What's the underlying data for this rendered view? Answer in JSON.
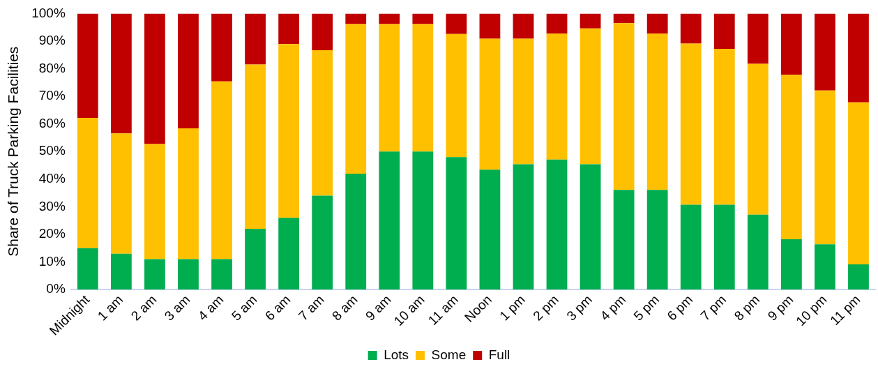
{
  "chart_data": {
    "type": "bar",
    "stacked": true,
    "ylabel": "Share of Truck Parking Facilities",
    "categories": [
      "Midnight",
      "1 am",
      "2 am",
      "3 am",
      "4 am",
      "5 am",
      "6 am",
      "7 am",
      "8 am",
      "9 am",
      "10 am",
      "11 am",
      "Noon",
      "1 pm",
      "2 pm",
      "3 pm",
      "4 pm",
      "5 pm",
      "6 pm",
      "7 pm",
      "8 pm",
      "9 pm",
      "10 pm",
      "11 pm"
    ],
    "series": [
      {
        "name": "Lots",
        "color": "#00ad4f",
        "values": [
          15,
          13,
          11,
          11,
          11,
          22,
          26,
          34,
          42,
          50,
          50,
          48,
          43.4,
          45.4,
          47.1,
          45.4,
          36.1,
          36.1,
          30.7,
          30.7,
          27.1,
          18.2,
          16.4,
          9.1
        ]
      },
      {
        "name": "Some",
        "color": "#ffc000",
        "values": [
          47.2,
          43.6,
          41.7,
          47.4,
          64.4,
          59.5,
          62.9,
          52.7,
          54.2,
          46.2,
          46.2,
          44.6,
          47.5,
          45.5,
          45.6,
          49.2,
          60.4,
          56.6,
          58.4,
          56.5,
          54.7,
          59.6,
          55.7,
          58.7
        ]
      },
      {
        "name": "Full",
        "color": "#c00000",
        "values": [
          37.8,
          43.4,
          47.3,
          41.6,
          24.6,
          18.5,
          11.1,
          13.3,
          3.8,
          3.8,
          3.8,
          7.4,
          9.1,
          9.1,
          7.3,
          5.4,
          3.5,
          7.3,
          10.9,
          12.8,
          18.2,
          22.2,
          27.9,
          32.2
        ]
      }
    ],
    "ylim": [
      0,
      100
    ],
    "yticks": [
      {
        "value": 0,
        "label": "0%"
      },
      {
        "value": 10,
        "label": "10%"
      },
      {
        "value": 20,
        "label": "20%"
      },
      {
        "value": 30,
        "label": "30%"
      },
      {
        "value": 40,
        "label": "40%"
      },
      {
        "value": 50,
        "label": "50%"
      },
      {
        "value": 60,
        "label": "60%"
      },
      {
        "value": 70,
        "label": "70%"
      },
      {
        "value": 80,
        "label": "80%"
      },
      {
        "value": 90,
        "label": "90%"
      },
      {
        "value": 100,
        "label": "100%"
      }
    ],
    "grid": false,
    "legend": "bottom"
  }
}
